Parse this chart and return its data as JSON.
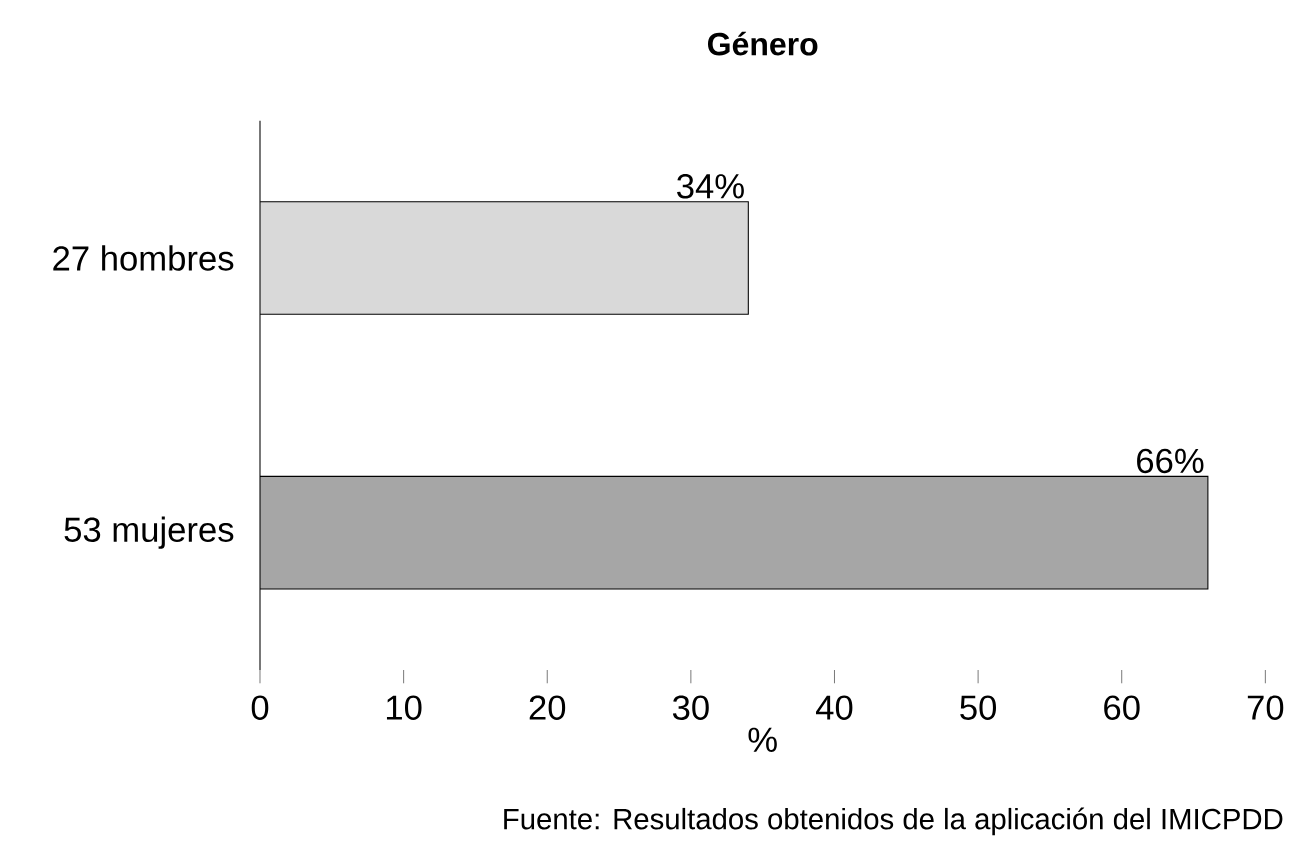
{
  "chart_data": {
    "type": "bar",
    "orientation": "horizontal",
    "title": "Género",
    "xlabel": "%",
    "categories": [
      "27 hombres",
      "53 mujeres"
    ],
    "values": [
      34,
      66
    ],
    "value_labels": [
      "34%",
      "66%"
    ],
    "colors": [
      "#d9d9d9",
      "#a6a6a6"
    ],
    "xlim": [
      0,
      70
    ],
    "xticks": [
      0,
      10,
      20,
      30,
      40,
      50,
      60,
      70
    ],
    "annotations": [
      "Fuente: Resultados obtenidos de la aplicación del IMICPDD"
    ]
  }
}
